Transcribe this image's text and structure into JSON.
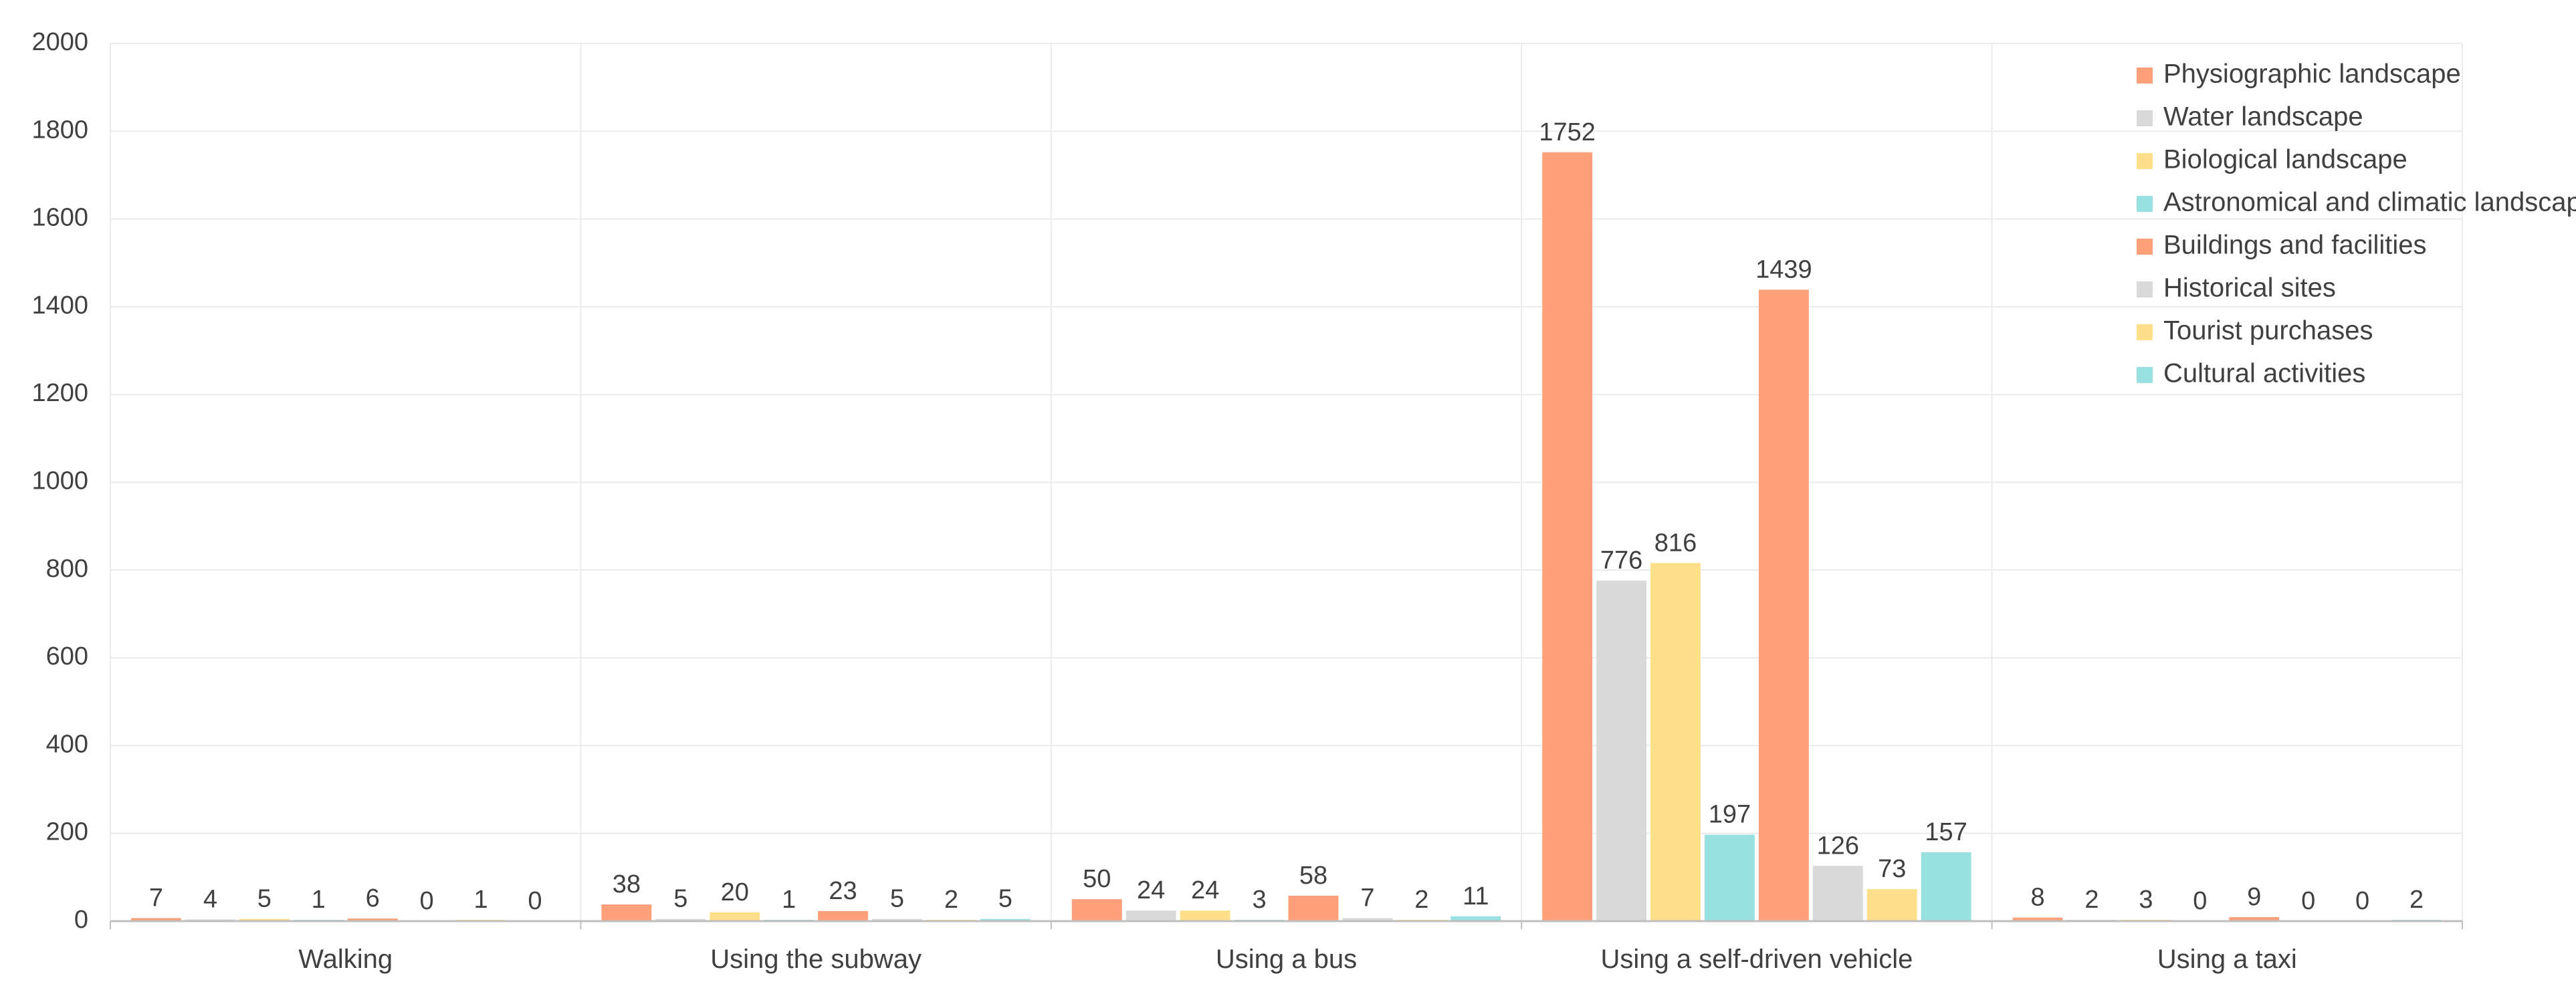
{
  "chart_data": {
    "type": "bar",
    "title": "",
    "xlabel": "",
    "ylabel": "",
    "ylim": [
      0,
      2000
    ],
    "yticks": [
      0,
      200,
      400,
      600,
      800,
      1000,
      1200,
      1400,
      1600,
      1800,
      2000
    ],
    "grid": true,
    "legend_position": "top-right",
    "categories": [
      "Walking",
      "Using the subway",
      "Using a bus",
      "Using a self-driven vehicle",
      "Using a taxi"
    ],
    "series": [
      {
        "name": "Physiographic landscape",
        "color": "#FFA07A",
        "values": [
          7,
          38,
          50,
          1752,
          8
        ]
      },
      {
        "name": "Water landscape",
        "color": "#D9D9D9",
        "values": [
          4,
          5,
          24,
          776,
          2
        ]
      },
      {
        "name": "Biological landscape",
        "color": "#FFE08A",
        "values": [
          5,
          20,
          24,
          816,
          3
        ]
      },
      {
        "name": "Astronomical and climatic landscape",
        "color": "#99E0E0",
        "values": [
          1,
          1,
          3,
          197,
          0
        ]
      },
      {
        "name": "Buildings and facilities",
        "color": "#FFA07A",
        "values": [
          6,
          23,
          58,
          1439,
          9
        ]
      },
      {
        "name": "Historical sites",
        "color": "#D9D9D9",
        "values": [
          0,
          5,
          7,
          126,
          0
        ]
      },
      {
        "name": "Tourist purchases",
        "color": "#FFE08A",
        "values": [
          1,
          2,
          2,
          73,
          0
        ]
      },
      {
        "name": "Cultural activities",
        "color": "#99E0E0",
        "values": [
          0,
          5,
          11,
          157,
          2
        ]
      }
    ]
  }
}
